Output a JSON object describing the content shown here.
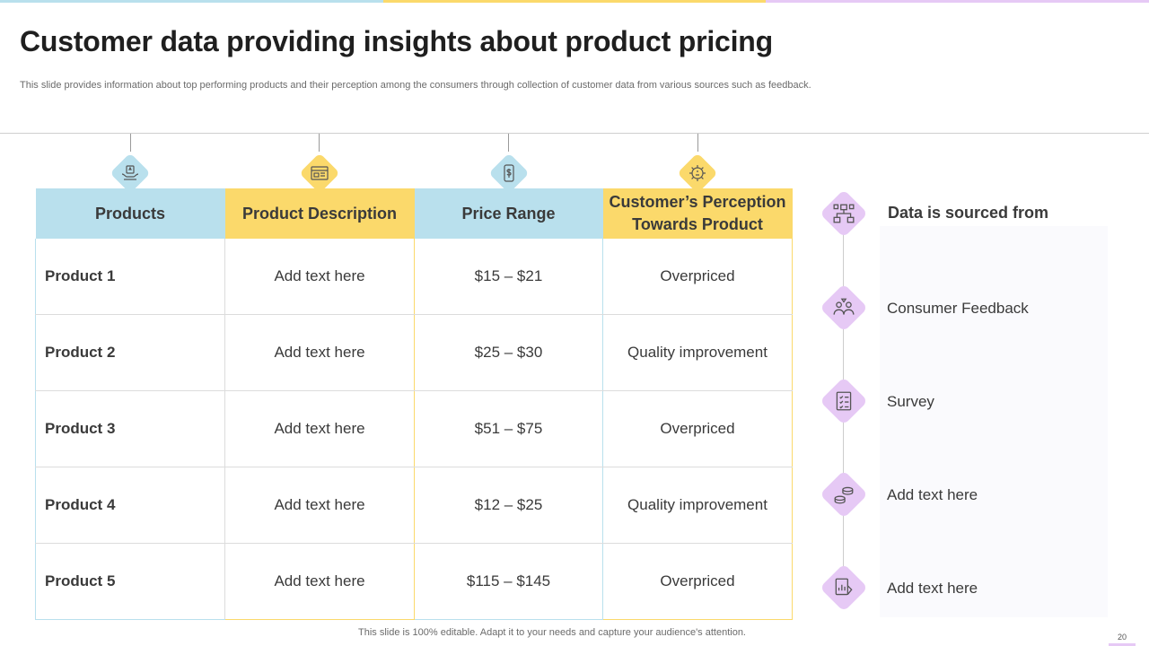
{
  "colors": {
    "blue": "#b9e0ed",
    "yellow": "#fbd96b",
    "lavender": "#e6c9f5"
  },
  "slide": {
    "title": "Customer data providing insights about product pricing",
    "subtitle": "This slide provides information about top performing products and their perception among the consumers through  collection of customer data from various sources such as feedback.",
    "footer": "This slide is 100% editable. Adapt it to your needs and capture your audience's attention.",
    "page_number": "20"
  },
  "table": {
    "headers": [
      {
        "label": "Products",
        "icon": "hand-product-icon"
      },
      {
        "label": "Product Description",
        "icon": "product-card-icon"
      },
      {
        "label": "Price Range",
        "icon": "price-tag-icon"
      },
      {
        "label": "Customer’s Perception Towards Product",
        "icon": "idea-gear-icon"
      }
    ],
    "rows": [
      {
        "product": "Product 1",
        "description": "Add text here",
        "price": "$15 – $21",
        "perception": "Overpriced"
      },
      {
        "product": "Product 2",
        "description": "Add text here",
        "price": "$25 – $30",
        "perception": "Quality improvement"
      },
      {
        "product": "Product 3",
        "description": "Add text here",
        "price": "$51 – $75",
        "perception": "Overpriced"
      },
      {
        "product": "Product 4",
        "description": "Add text here",
        "price": "$12 – $25",
        "perception": "Quality improvement"
      },
      {
        "product": "Product 5",
        "description": "Add text here",
        "price": "$115 – $145",
        "perception": "Overpriced"
      }
    ]
  },
  "sources": {
    "heading": "Data is sourced from",
    "heading_icon": "network-icon",
    "items": [
      {
        "label": "Consumer Feedback",
        "icon": "feedback-people-icon"
      },
      {
        "label": "Survey",
        "icon": "survey-checklist-icon"
      },
      {
        "label": "Add text here",
        "icon": "coins-icon"
      },
      {
        "label": "Add text here",
        "icon": "report-chart-icon"
      }
    ]
  }
}
